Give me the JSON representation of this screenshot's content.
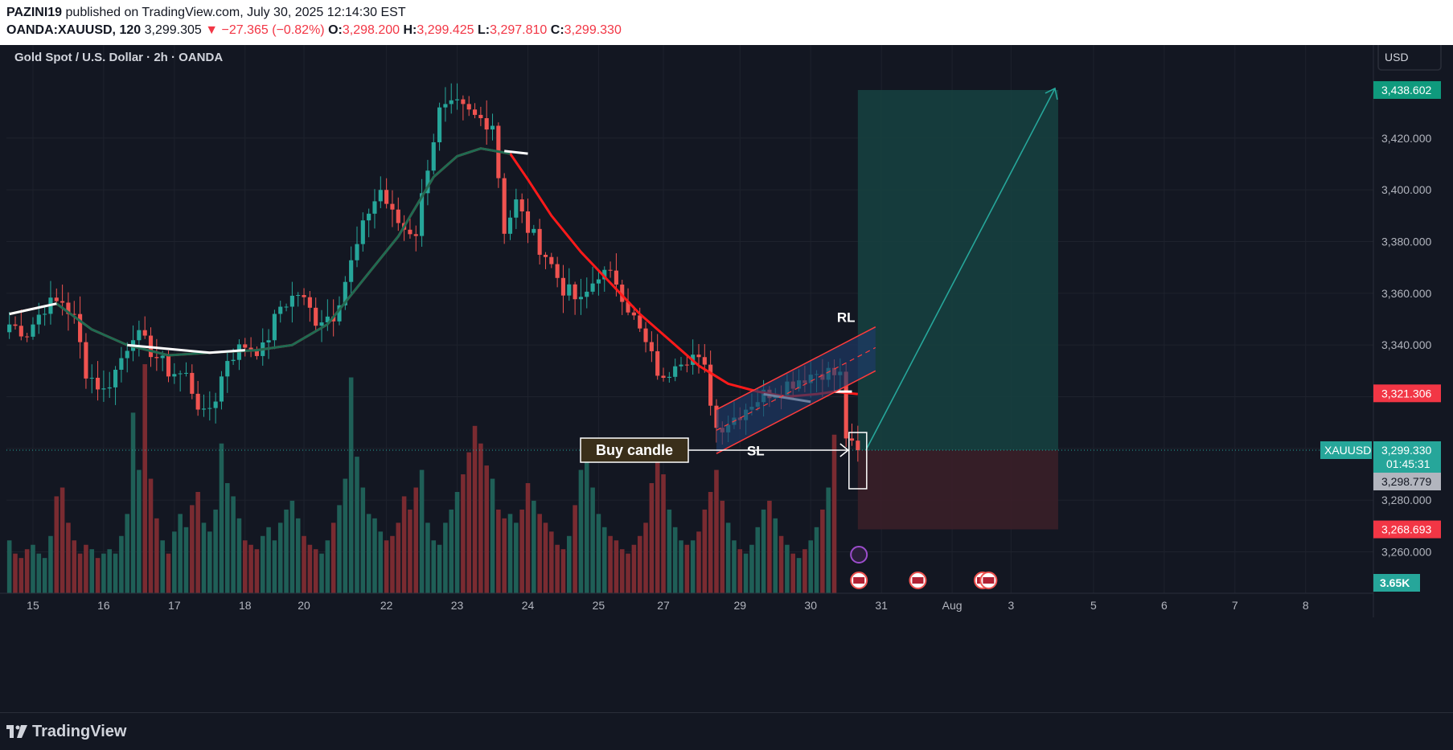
{
  "header": {
    "author": "PAZINI19",
    "published_text": "published on TradingView.com, July 30, 2025 12:14:30 EST",
    "symbol": "OANDA:XAUUSD, 120",
    "last": "3,299.305",
    "change": "−27.365 (−0.82%)",
    "o_label": "O:",
    "o_value": "3,298.200",
    "h_label": "H:",
    "h_value": "3,299.425",
    "l_label": "L:",
    "l_value": "3,297.810",
    "c_label": "C:",
    "c_value": "3,299.330"
  },
  "currency_button": "USD",
  "footer": {
    "brand": "TradingView"
  },
  "colors": {
    "up": "#26a69a",
    "down": "#ef5350",
    "ma_red": "#ff1a1a",
    "ma_green": "#1e6b52",
    "ma_white": "#ffffff",
    "channel": "#ff3b3b",
    "channel_fill": "#1e3a6a",
    "profit_zone": "#163f3f",
    "loss_zone": "#3a1f28",
    "background": "#131722"
  },
  "chart_data": {
    "type": "candlestick",
    "title": "Gold Spot / U.S. Dollar · 2h · OANDA",
    "ylim": [
      3244,
      3456
    ],
    "y_ticks": [
      3260,
      3280,
      3300,
      3320,
      3340,
      3360,
      3380,
      3400,
      3420
    ],
    "y_tick_labels": [
      "3,260.000",
      "3,280.000",
      "3,300.000",
      "3,320.000",
      "3,340.000",
      "3,360.000",
      "3,380.000",
      "3,400.000",
      "3,420.000"
    ],
    "x_labels": [
      {
        "label": "15",
        "bar": 4
      },
      {
        "label": "16",
        "bar": 16
      },
      {
        "label": "17",
        "bar": 28
      },
      {
        "label": "18",
        "bar": 40
      },
      {
        "label": "20",
        "bar": 50
      },
      {
        "label": "22",
        "bar": 64
      },
      {
        "label": "23",
        "bar": 76
      },
      {
        "label": "24",
        "bar": 88
      },
      {
        "label": "25",
        "bar": 100
      },
      {
        "label": "27",
        "bar": 111
      },
      {
        "label": "29",
        "bar": 124
      },
      {
        "label": "30",
        "bar": 136
      },
      {
        "label": "31",
        "bar": 148
      },
      {
        "label": "Aug",
        "bar": 160
      },
      {
        "label": "3",
        "bar": 170
      },
      {
        "label": "5",
        "bar": 184
      },
      {
        "label": "6",
        "bar": 196
      },
      {
        "label": "7",
        "bar": 208
      },
      {
        "label": "8",
        "bar": 220
      }
    ],
    "price_labels": [
      {
        "text": "3,438.602",
        "value": 3438.602,
        "color": "#0f9a7d"
      },
      {
        "text": "3,321.306",
        "value": 3321.306,
        "color": "#f23645"
      },
      {
        "text": "3,299.330",
        "value": 3299.33,
        "color": "#26a69a",
        "sub": "01:45:31"
      },
      {
        "text": "3,298.779",
        "value": 3298.779,
        "color": "#b2b5be"
      },
      {
        "text": "3,268.693",
        "value": 3268.693,
        "color": "#f23645"
      }
    ],
    "symbol_tag": "XAUUSD",
    "volume_label": "3.65K",
    "position": {
      "entry": 3299.33,
      "target": 3438.602,
      "stop": 3268.693,
      "start_bar": 144,
      "end_bar": 178
    },
    "annotations": {
      "buy_candle": "Buy candle",
      "rl": "RL",
      "sl": "SL"
    },
    "channel": {
      "x1": 120,
      "x2": 147,
      "lower1": 3298,
      "lower2": 3330,
      "upper1": 3315,
      "upper2": 3347,
      "mid1": 3307,
      "mid2": 3339
    },
    "anchors": [
      [
        0,
        3348
      ],
      [
        3,
        3345
      ],
      [
        6,
        3355
      ],
      [
        9,
        3357
      ],
      [
        11,
        3350
      ],
      [
        13,
        3330
      ],
      [
        16,
        3322
      ],
      [
        18,
        3330
      ],
      [
        21,
        3345
      ],
      [
        24,
        3338
      ],
      [
        27,
        3330
      ],
      [
        30,
        3328
      ],
      [
        33,
        3312
      ],
      [
        35,
        3320
      ],
      [
        37,
        3335
      ],
      [
        40,
        3340
      ],
      [
        43,
        3338
      ],
      [
        46,
        3355
      ],
      [
        49,
        3360
      ],
      [
        52,
        3350
      ],
      [
        55,
        3352
      ],
      [
        57,
        3365
      ],
      [
        59,
        3378
      ],
      [
        61,
        3392
      ],
      [
        63,
        3400
      ],
      [
        65,
        3390
      ],
      [
        67,
        3385
      ],
      [
        69,
        3384
      ],
      [
        71,
        3410
      ],
      [
        73,
        3430
      ],
      [
        76,
        3432
      ],
      [
        79,
        3428
      ],
      [
        82,
        3426
      ],
      [
        84,
        3385
      ],
      [
        86,
        3395
      ],
      [
        88,
        3385
      ],
      [
        91,
        3375
      ],
      [
        94,
        3362
      ],
      [
        97,
        3356
      ],
      [
        100,
        3368
      ],
      [
        103,
        3365
      ],
      [
        106,
        3350
      ],
      [
        109,
        3335
      ],
      [
        111,
        3325
      ],
      [
        113,
        3335
      ],
      [
        116,
        3336
      ],
      [
        118,
        3330
      ],
      [
        120,
        3308
      ],
      [
        123,
        3312
      ],
      [
        126,
        3318
      ],
      [
        129,
        3322
      ],
      [
        132,
        3325
      ],
      [
        135,
        3328
      ],
      [
        138,
        3330
      ],
      [
        141,
        3328
      ],
      [
        142,
        3305
      ],
      [
        143,
        3300
      ],
      [
        144,
        3299
      ]
    ],
    "volumes": [
      1.2,
      0.9,
      0.8,
      1.0,
      1.1,
      0.9,
      0.8,
      1.3,
      2.2,
      2.4,
      1.6,
      1.2,
      0.9,
      1.1,
      1.0,
      0.8,
      0.9,
      1.0,
      0.9,
      1.3,
      1.8,
      4.1,
      2.8,
      5.2,
      2.6,
      1.7,
      1.2,
      0.9,
      1.4,
      1.8,
      1.5,
      2.0,
      2.3,
      1.6,
      1.4,
      1.9,
      3.4,
      2.5,
      2.2,
      1.7,
      1.2,
      1.1,
      1.0,
      1.3,
      1.5,
      1.2,
      1.6,
      1.9,
      2.1,
      1.7,
      1.3,
      1.1,
      1.0,
      0.9,
      1.2,
      1.6,
      2.0,
      2.6,
      4.9,
      3.1,
      2.4,
      1.8,
      1.7,
      1.4,
      1.2,
      1.3,
      1.6,
      2.2,
      1.9,
      2.4,
      2.8,
      1.6,
      1.2,
      1.1,
      1.6,
      1.9,
      2.3,
      2.7,
      3.2,
      3.8,
      3.4,
      2.9,
      2.6,
      1.9,
      1.7,
      1.8,
      1.6,
      1.9,
      2.5,
      2.1,
      1.8,
      1.6,
      1.4,
      1.1,
      1.0,
      1.3,
      2.0,
      2.8,
      3.1,
      2.4,
      1.8,
      1.5,
      1.3,
      1.2,
      1.0,
      0.9,
      1.1,
      1.3,
      1.6,
      2.5,
      3.0,
      2.7,
      1.9,
      1.5,
      1.2,
      1.1,
      1.2,
      1.4,
      1.9,
      2.3,
      2.8,
      2.1,
      1.6,
      1.2,
      1.0,
      0.9,
      1.1,
      1.5,
      1.9,
      2.1,
      1.7,
      1.3,
      1.1,
      0.9,
      0.8,
      1.0,
      1.2,
      1.5,
      1.9,
      2.4,
      3.6
    ],
    "volume_max_label_value": 3.65,
    "ma_red": [
      [
        0,
        3352
      ],
      [
        8,
        3356
      ],
      [
        14,
        3346
      ],
      [
        20,
        3340
      ],
      [
        27,
        3336
      ],
      [
        34,
        3337
      ],
      [
        42,
        3338
      ],
      [
        48,
        3340
      ],
      [
        54,
        3348
      ],
      [
        60,
        3365
      ],
      [
        66,
        3382
      ],
      [
        72,
        3405
      ],
      [
        76,
        3413
      ],
      [
        80,
        3416
      ],
      [
        85,
        3414
      ],
      [
        88,
        3404
      ],
      [
        92,
        3390
      ],
      [
        97,
        3376
      ],
      [
        102,
        3364
      ],
      [
        107,
        3352
      ],
      [
        112,
        3342
      ],
      [
        117,
        3332
      ],
      [
        122,
        3325
      ],
      [
        127,
        3322
      ],
      [
        132,
        3320
      ],
      [
        137,
        3321
      ],
      [
        140,
        3322
      ],
      [
        144,
        3321
      ]
    ],
    "ma_green": [
      [
        0,
        3352
      ],
      [
        8,
        3356
      ],
      [
        14,
        3346
      ],
      [
        20,
        3340
      ],
      [
        27,
        3336
      ],
      [
        34,
        3337
      ],
      [
        42,
        3338
      ],
      [
        48,
        3340
      ],
      [
        54,
        3348
      ],
      [
        60,
        3365
      ],
      [
        66,
        3382
      ],
      [
        72,
        3405
      ],
      [
        76,
        3413
      ],
      [
        80,
        3416
      ],
      [
        85,
        3414
      ]
    ],
    "ma_white_segments": [
      [
        [
          0,
          3352
        ],
        [
          8,
          3356
        ]
      ],
      [
        [
          20,
          3340
        ],
        [
          34,
          3337
        ],
        [
          40,
          3338
        ]
      ],
      [
        [
          84,
          3415
        ],
        [
          88,
          3414
        ]
      ],
      [
        [
          128,
          3321
        ],
        [
          136,
          3318
        ]
      ],
      [
        [
          140,
          3322
        ],
        [
          143,
          3322
        ]
      ]
    ],
    "bars_in_history": 145,
    "bars_total_span": 232
  }
}
